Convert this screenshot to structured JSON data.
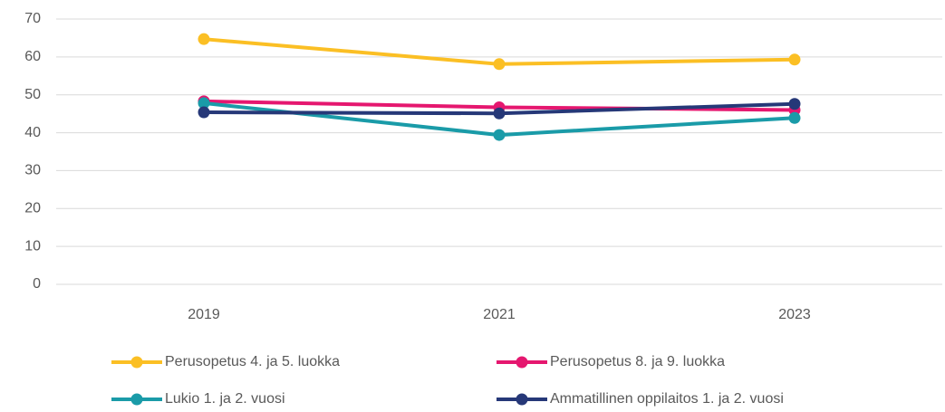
{
  "chart_data": {
    "type": "line",
    "categories": [
      "2019",
      "2021",
      "2023"
    ],
    "series": [
      {
        "name": "Perusopetus 4. ja 5. luokka",
        "color": "#fbbf24",
        "values": [
          64.7,
          58.1,
          59.3
        ]
      },
      {
        "name": "Perusopetus 8. ja 9. luokka",
        "color": "#e5176f",
        "values": [
          48.3,
          46.7,
          46.0
        ]
      },
      {
        "name": "Lukio 1. ja 2. vuosi",
        "color": "#1a9ba8",
        "values": [
          47.8,
          39.4,
          43.9
        ]
      },
      {
        "name": "Ammatillinen oppilaitos 1. ja 2. vuosi",
        "color": "#263878",
        "values": [
          45.4,
          45.1,
          47.6
        ]
      }
    ],
    "ylim": [
      0,
      70
    ],
    "yticks": [
      0,
      10,
      20,
      30,
      40,
      50,
      60,
      70
    ],
    "grid": true,
    "legend": "bottom"
  }
}
